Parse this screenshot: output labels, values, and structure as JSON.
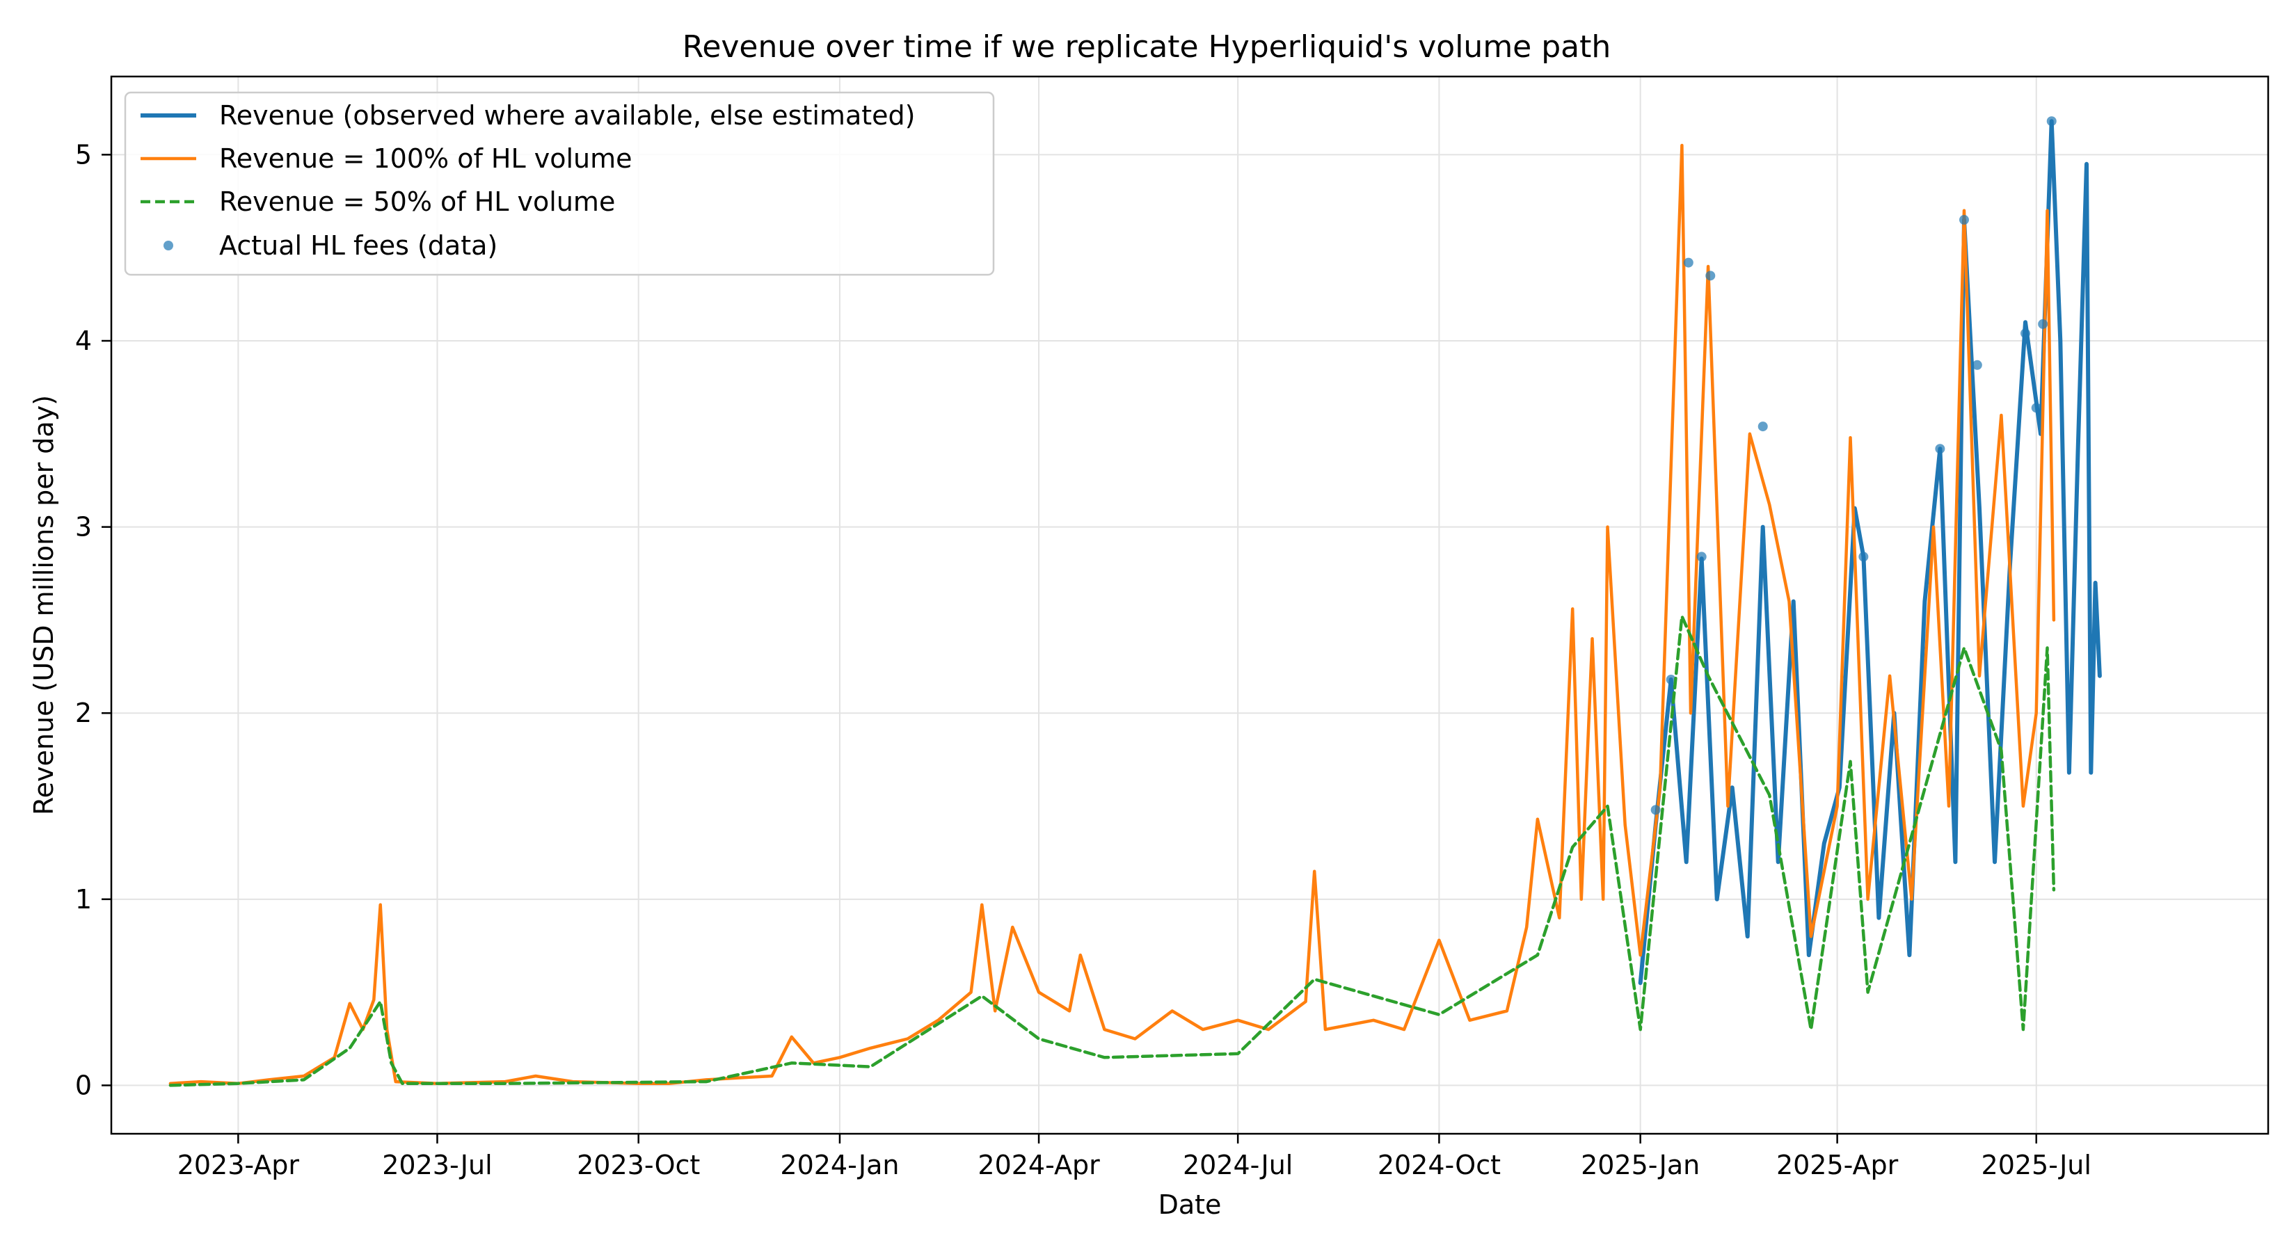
{
  "chart_data": {
    "type": "line",
    "title": "Revenue over time if we replicate Hyperliquid's volume path",
    "xlabel": "Date",
    "ylabel": "Revenue (USD millions per day)",
    "xlim": [
      "2023-02-02",
      "2025-10-15"
    ],
    "ylim": [
      -0.26,
      5.42
    ],
    "grid": true,
    "legend_position": "top-left",
    "x_ticks": [
      {
        "date": "2023-04-01",
        "label": "2023-Apr"
      },
      {
        "date": "2023-07-01",
        "label": "2023-Jul"
      },
      {
        "date": "2023-10-01",
        "label": "2023-Oct"
      },
      {
        "date": "2024-01-01",
        "label": "2024-Jan"
      },
      {
        "date": "2024-04-01",
        "label": "2024-Apr"
      },
      {
        "date": "2024-07-01",
        "label": "2024-Jul"
      },
      {
        "date": "2024-10-01",
        "label": "2024-Oct"
      },
      {
        "date": "2025-01-01",
        "label": "2025-Jan"
      },
      {
        "date": "2025-04-01",
        "label": "2025-Apr"
      },
      {
        "date": "2025-07-01",
        "label": "2025-Jul"
      }
    ],
    "y_ticks": [
      {
        "value": 0,
        "label": "0"
      },
      {
        "value": 1,
        "label": "1"
      },
      {
        "value": 2,
        "label": "2"
      },
      {
        "value": 3,
        "label": "3"
      },
      {
        "value": 4,
        "label": "4"
      },
      {
        "value": 5,
        "label": "5"
      }
    ],
    "series": [
      {
        "name": "Revenue (observed where available, else estimated)",
        "kind": "line",
        "color": "#1f77b4",
        "dash": "solid",
        "points": [
          [
            "2025-01-01",
            0.55
          ],
          [
            "2025-01-08",
            1.4
          ],
          [
            "2025-01-15",
            2.18
          ],
          [
            "2025-01-22",
            1.2
          ],
          [
            "2025-01-29",
            2.83
          ],
          [
            "2025-02-05",
            1.0
          ],
          [
            "2025-02-12",
            1.6
          ],
          [
            "2025-02-19",
            0.8
          ],
          [
            "2025-02-26",
            3.0
          ],
          [
            "2025-03-05",
            1.2
          ],
          [
            "2025-03-12",
            2.6
          ],
          [
            "2025-03-19",
            0.7
          ],
          [
            "2025-03-26",
            1.3
          ],
          [
            "2025-04-02",
            1.6
          ],
          [
            "2025-04-09",
            3.1
          ],
          [
            "2025-04-13",
            2.84
          ],
          [
            "2025-04-20",
            0.9
          ],
          [
            "2025-04-27",
            2.0
          ],
          [
            "2025-05-04",
            0.7
          ],
          [
            "2025-05-11",
            2.6
          ],
          [
            "2025-05-18",
            3.42
          ],
          [
            "2025-05-25",
            1.2
          ],
          [
            "2025-05-29",
            4.65
          ],
          [
            "2025-06-05",
            3.1
          ],
          [
            "2025-06-12",
            1.2
          ],
          [
            "2025-06-19",
            2.8
          ],
          [
            "2025-06-26",
            4.1
          ],
          [
            "2025-07-03",
            3.5
          ],
          [
            "2025-07-08",
            5.18
          ],
          [
            "2025-07-12",
            4.0
          ],
          [
            "2025-07-16",
            1.68
          ],
          [
            "2025-07-20",
            3.4
          ],
          [
            "2025-07-24",
            4.95
          ],
          [
            "2025-07-26",
            1.68
          ],
          [
            "2025-07-28",
            2.7
          ],
          [
            "2025-07-30",
            2.2
          ]
        ]
      },
      {
        "name": "Revenue = 100% of HL volume",
        "kind": "line",
        "color": "#ff7f0e",
        "dash": "solid",
        "points": [
          [
            "2023-03-01",
            0.01
          ],
          [
            "2023-03-15",
            0.02
          ],
          [
            "2023-04-01",
            0.01
          ],
          [
            "2023-04-15",
            0.03
          ],
          [
            "2023-05-01",
            0.05
          ],
          [
            "2023-05-15",
            0.15
          ],
          [
            "2023-05-22",
            0.44
          ],
          [
            "2023-05-28",
            0.3
          ],
          [
            "2023-06-02",
            0.46
          ],
          [
            "2023-06-05",
            0.97
          ],
          [
            "2023-06-08",
            0.3
          ],
          [
            "2023-06-12",
            0.02
          ],
          [
            "2023-07-01",
            0.01
          ],
          [
            "2023-08-01",
            0.02
          ],
          [
            "2023-08-15",
            0.05
          ],
          [
            "2023-09-01",
            0.02
          ],
          [
            "2023-10-01",
            0.01
          ],
          [
            "2023-10-15",
            0.01
          ],
          [
            "2023-11-01",
            0.03
          ],
          [
            "2023-11-15",
            0.04
          ],
          [
            "2023-12-01",
            0.05
          ],
          [
            "2023-12-10",
            0.26
          ],
          [
            "2023-12-20",
            0.12
          ],
          [
            "2024-01-01",
            0.15
          ],
          [
            "2024-01-15",
            0.2
          ],
          [
            "2024-02-01",
            0.25
          ],
          [
            "2024-02-15",
            0.35
          ],
          [
            "2024-03-01",
            0.5
          ],
          [
            "2024-03-06",
            0.97
          ],
          [
            "2024-03-12",
            0.4
          ],
          [
            "2024-03-20",
            0.85
          ],
          [
            "2024-04-01",
            0.5
          ],
          [
            "2024-04-15",
            0.4
          ],
          [
            "2024-04-20",
            0.7
          ],
          [
            "2024-05-01",
            0.3
          ],
          [
            "2024-05-15",
            0.25
          ],
          [
            "2024-06-01",
            0.4
          ],
          [
            "2024-06-15",
            0.3
          ],
          [
            "2024-07-01",
            0.35
          ],
          [
            "2024-07-15",
            0.3
          ],
          [
            "2024-08-01",
            0.45
          ],
          [
            "2024-08-05",
            1.15
          ],
          [
            "2024-08-10",
            0.3
          ],
          [
            "2024-09-01",
            0.35
          ],
          [
            "2024-09-15",
            0.3
          ],
          [
            "2024-10-01",
            0.78
          ],
          [
            "2024-10-15",
            0.35
          ],
          [
            "2024-11-01",
            0.4
          ],
          [
            "2024-11-10",
            0.85
          ],
          [
            "2024-11-15",
            1.43
          ],
          [
            "2024-11-25",
            0.9
          ],
          [
            "2024-12-01",
            2.56
          ],
          [
            "2024-12-05",
            1.0
          ],
          [
            "2024-12-10",
            2.4
          ],
          [
            "2024-12-15",
            1.0
          ],
          [
            "2024-12-17",
            3.0
          ],
          [
            "2024-12-25",
            1.4
          ],
          [
            "2025-01-01",
            0.7
          ],
          [
            "2025-01-10",
            1.6
          ],
          [
            "2025-01-20",
            5.05
          ],
          [
            "2025-01-24",
            2.0
          ],
          [
            "2025-02-01",
            4.4
          ],
          [
            "2025-02-10",
            1.5
          ],
          [
            "2025-02-20",
            3.5
          ],
          [
            "2025-03-01",
            3.12
          ],
          [
            "2025-03-10",
            2.6
          ],
          [
            "2025-03-20",
            0.8
          ],
          [
            "2025-04-01",
            1.5
          ],
          [
            "2025-04-07",
            3.48
          ],
          [
            "2025-04-15",
            1.0
          ],
          [
            "2025-04-25",
            2.2
          ],
          [
            "2025-05-05",
            1.0
          ],
          [
            "2025-05-15",
            3.0
          ],
          [
            "2025-05-22",
            1.5
          ],
          [
            "2025-05-29",
            4.7
          ],
          [
            "2025-06-05",
            2.2
          ],
          [
            "2025-06-15",
            3.6
          ],
          [
            "2025-06-25",
            1.5
          ],
          [
            "2025-07-01",
            2.0
          ],
          [
            "2025-07-06",
            4.7
          ],
          [
            "2025-07-09",
            2.5
          ]
        ]
      },
      {
        "name": "Revenue = 50% of HL volume",
        "kind": "line",
        "color": "#2ca02c",
        "dash": "dashed",
        "points": [
          [
            "2023-03-01",
            0.0
          ],
          [
            "2023-04-01",
            0.01
          ],
          [
            "2023-05-01",
            0.03
          ],
          [
            "2023-05-22",
            0.2
          ],
          [
            "2023-06-05",
            0.45
          ],
          [
            "2023-06-10",
            0.12
          ],
          [
            "2023-06-15",
            0.01
          ],
          [
            "2023-08-01",
            0.01
          ],
          [
            "2023-11-01",
            0.02
          ],
          [
            "2023-12-10",
            0.12
          ],
          [
            "2024-01-15",
            0.1
          ],
          [
            "2024-03-06",
            0.48
          ],
          [
            "2024-04-01",
            0.25
          ],
          [
            "2024-05-01",
            0.15
          ],
          [
            "2024-07-01",
            0.17
          ],
          [
            "2024-08-05",
            0.57
          ],
          [
            "2024-10-01",
            0.38
          ],
          [
            "2024-11-15",
            0.7
          ],
          [
            "2024-12-01",
            1.28
          ],
          [
            "2024-12-17",
            1.5
          ],
          [
            "2025-01-01",
            0.3
          ],
          [
            "2025-01-20",
            2.52
          ],
          [
            "2025-02-01",
            2.2
          ],
          [
            "2025-03-01",
            1.56
          ],
          [
            "2025-03-20",
            0.3
          ],
          [
            "2025-04-07",
            1.74
          ],
          [
            "2025-04-15",
            0.5
          ],
          [
            "2025-05-29",
            2.35
          ],
          [
            "2025-06-15",
            1.8
          ],
          [
            "2025-06-25",
            0.3
          ],
          [
            "2025-07-06",
            2.35
          ],
          [
            "2025-07-09",
            1.05
          ]
        ]
      },
      {
        "name": "Actual HL fees (data)",
        "kind": "scatter",
        "color": "#1f77b4",
        "points": [
          [
            "2025-01-08",
            1.48
          ],
          [
            "2025-01-15",
            2.18
          ],
          [
            "2025-01-23",
            4.42
          ],
          [
            "2025-01-29",
            2.84
          ],
          [
            "2025-02-02",
            4.35
          ],
          [
            "2025-02-26",
            3.54
          ],
          [
            "2025-04-13",
            2.84
          ],
          [
            "2025-05-18",
            3.42
          ],
          [
            "2025-05-29",
            4.65
          ],
          [
            "2025-06-04",
            3.87
          ],
          [
            "2025-06-26",
            4.04
          ],
          [
            "2025-07-01",
            3.64
          ],
          [
            "2025-07-04",
            4.09
          ],
          [
            "2025-07-08",
            5.18
          ]
        ]
      }
    ]
  }
}
